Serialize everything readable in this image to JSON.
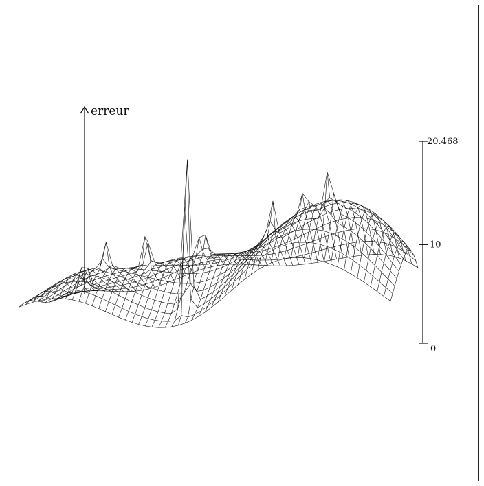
{
  "chart_data": {
    "type": "surface",
    "surface_style": "3d-wireframe",
    "zlabel": "erreur",
    "zlim": [
      0,
      20.468
    ],
    "z_ticks": [
      {
        "value": 20.468,
        "label": "20.468"
      },
      {
        "value": 10,
        "label": "10"
      },
      {
        "value": 0,
        "label": "0"
      }
    ],
    "peak_max": 20.468,
    "line_color": "#111111",
    "grid": false,
    "legend": "none"
  }
}
